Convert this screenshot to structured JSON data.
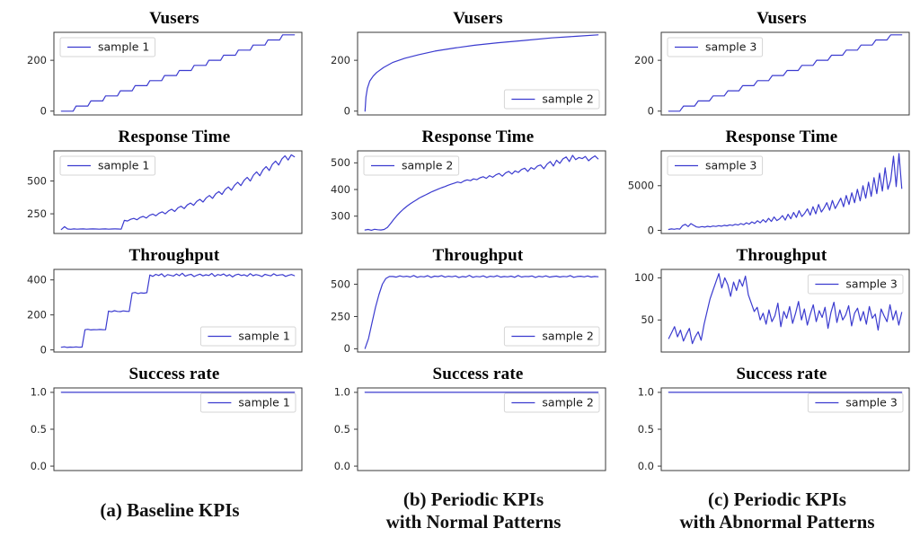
{
  "figure": {
    "line_color": "#3b3bcf",
    "axis_color": "#3a3a3a",
    "tick_label_color": "#262626",
    "legend_border_color": "#d5d5d5",
    "captions": [
      {
        "lines": [
          "(a) Baseline KPIs"
        ]
      },
      {
        "lines": [
          "(b) Periodic KPIs",
          "with Normal Patterns"
        ]
      },
      {
        "lines": [
          "(c) Periodic KPIs",
          "with Abnormal Patterns"
        ]
      }
    ]
  },
  "chart_data": [
    {
      "id": "vusers-a",
      "type": "line",
      "title": "Vusers",
      "row": 0,
      "col": 0,
      "legend": {
        "label": "sample 1",
        "position": "upper-left"
      },
      "ylim": [
        -15,
        310
      ],
      "yticks": [
        {
          "v": 0,
          "label": "0"
        },
        {
          "v": 200,
          "label": "200"
        }
      ],
      "values": [
        0,
        0,
        0,
        0,
        0,
        20,
        20,
        20,
        20,
        20,
        40,
        40,
        40,
        40,
        40,
        60,
        60,
        60,
        60,
        60,
        80,
        80,
        80,
        80,
        80,
        100,
        100,
        100,
        100,
        100,
        120,
        120,
        120,
        120,
        120,
        140,
        140,
        140,
        140,
        140,
        160,
        160,
        160,
        160,
        160,
        180,
        180,
        180,
        180,
        180,
        200,
        200,
        200,
        200,
        200,
        220,
        220,
        220,
        220,
        220,
        240,
        240,
        240,
        240,
        240,
        260,
        260,
        260,
        260,
        260,
        280,
        280,
        280,
        280,
        280,
        300,
        300,
        300,
        300,
        300
      ]
    },
    {
      "id": "vusers-b",
      "type": "line",
      "title": "Vusers",
      "row": 0,
      "col": 1,
      "legend": {
        "label": "sample 2",
        "position": "lower-right"
      },
      "ylim": [
        -15,
        310
      ],
      "yticks": [
        {
          "v": 0,
          "label": "0"
        },
        {
          "v": 200,
          "label": "200"
        }
      ],
      "points": [
        [
          0,
          0
        ],
        [
          0.004,
          55
        ],
        [
          0.01,
          90
        ],
        [
          0.02,
          118
        ],
        [
          0.035,
          138
        ],
        [
          0.05,
          152
        ],
        [
          0.08,
          172
        ],
        [
          0.12,
          192
        ],
        [
          0.17,
          208
        ],
        [
          0.23,
          222
        ],
        [
          0.3,
          236
        ],
        [
          0.38,
          248
        ],
        [
          0.47,
          259
        ],
        [
          0.57,
          269
        ],
        [
          0.68,
          278
        ],
        [
          0.8,
          288
        ],
        [
          0.9,
          294
        ],
        [
          1,
          300
        ]
      ]
    },
    {
      "id": "vusers-c",
      "type": "line",
      "title": "Vusers",
      "row": 0,
      "col": 2,
      "legend": {
        "label": "sample 3",
        "position": "upper-left"
      },
      "ylim": [
        -15,
        310
      ],
      "yticks": [
        {
          "v": 0,
          "label": "0"
        },
        {
          "v": 200,
          "label": "200"
        }
      ],
      "values": [
        0,
        0,
        0,
        0,
        20,
        20,
        20,
        20,
        40,
        40,
        40,
        40,
        60,
        60,
        60,
        60,
        80,
        80,
        80,
        80,
        100,
        100,
        100,
        100,
        120,
        120,
        120,
        120,
        140,
        140,
        140,
        140,
        160,
        160,
        160,
        160,
        180,
        180,
        180,
        180,
        200,
        200,
        200,
        200,
        220,
        220,
        220,
        220,
        240,
        240,
        240,
        240,
        260,
        260,
        260,
        260,
        280,
        280,
        280,
        280,
        300,
        300,
        300,
        300
      ]
    },
    {
      "id": "response-time-a",
      "type": "line",
      "title": "Response Time",
      "row": 1,
      "col": 0,
      "legend": {
        "label": "sample 1",
        "position": "upper-left"
      },
      "ylim": [
        100,
        730
      ],
      "yticks": [
        {
          "v": 250,
          "label": "250"
        },
        {
          "v": 500,
          "label": "500"
        }
      ],
      "values": [
        130,
        152,
        134,
        132,
        135,
        133,
        134,
        135,
        133,
        134,
        135,
        134,
        133,
        134,
        135,
        133,
        134,
        135,
        134,
        133,
        200,
        195,
        208,
        215,
        205,
        222,
        230,
        218,
        238,
        248,
        235,
        255,
        265,
        250,
        272,
        285,
        268,
        295,
        308,
        290,
        318,
        332,
        315,
        345,
        360,
        340,
        372,
        390,
        368,
        402,
        420,
        398,
        435,
        455,
        430,
        468,
        490,
        465,
        505,
        528,
        500,
        545,
        570,
        540,
        585,
        610,
        580,
        628,
        652,
        622,
        668,
        692,
        660,
        700,
        685
      ]
    },
    {
      "id": "response-time-b",
      "type": "line",
      "title": "Response Time",
      "row": 1,
      "col": 1,
      "legend": {
        "label": "sample 2",
        "position": "upper-left"
      },
      "ylim": [
        235,
        545
      ],
      "yticks": [
        {
          "v": 300,
          "label": "300"
        },
        {
          "v": 400,
          "label": "400"
        },
        {
          "v": 500,
          "label": "500"
        }
      ],
      "values": [
        248,
        250,
        247,
        251,
        249,
        248,
        250,
        258,
        272,
        288,
        302,
        315,
        326,
        336,
        345,
        353,
        360,
        368,
        374,
        380,
        386,
        392,
        397,
        402,
        407,
        411,
        416,
        420,
        424,
        428,
        425,
        432,
        436,
        433,
        440,
        437,
        444,
        448,
        442,
        452,
        446,
        455,
        460,
        450,
        462,
        468,
        458,
        470,
        464,
        475,
        480,
        468,
        482,
        476,
        488,
        492,
        478,
        495,
        505,
        488,
        510,
        498,
        515,
        522,
        505,
        528,
        512,
        520,
        516,
        524,
        508,
        518,
        526,
        515
      ]
    },
    {
      "id": "response-time-c",
      "type": "line",
      "title": "Response Time",
      "row": 1,
      "col": 2,
      "legend": {
        "label": "sample 3",
        "position": "upper-left"
      },
      "ylim": [
        -350,
        8900
      ],
      "yticks": [
        {
          "v": 0,
          "label": "0"
        },
        {
          "v": 5000,
          "label": "5000"
        }
      ],
      "values": [
        100,
        160,
        120,
        180,
        140,
        520,
        680,
        420,
        760,
        560,
        380,
        340,
        420,
        360,
        450,
        390,
        480,
        430,
        520,
        460,
        560,
        500,
        620,
        540,
        680,
        600,
        760,
        640,
        850,
        700,
        950,
        780,
        1080,
        850,
        1200,
        920,
        1350,
        1000,
        1500,
        1100,
        1300,
        1650,
        1150,
        1800,
        1300,
        2000,
        1450,
        2200,
        1550,
        1900,
        2400,
        1700,
        2650,
        1850,
        2900,
        2050,
        2500,
        3100,
        2250,
        3350,
        2450,
        3000,
        3600,
        2650,
        3900,
        2900,
        4200,
        3100,
        4600,
        3300,
        5000,
        3600,
        5400,
        3800,
        5900,
        4100,
        6400,
        4400,
        7000,
        4600,
        5600,
        8300,
        4900,
        8600,
        4700
      ]
    },
    {
      "id": "throughput-a",
      "type": "line",
      "title": "Throughput",
      "row": 2,
      "col": 0,
      "legend": {
        "label": "sample 1",
        "position": "lower-right"
      },
      "ylim": [
        -12,
        460
      ],
      "yticks": [
        {
          "v": 0,
          "label": "0"
        },
        {
          "v": 200,
          "label": "200"
        },
        {
          "v": 400,
          "label": "400"
        }
      ],
      "values": [
        15,
        18,
        14,
        16,
        15,
        17,
        15,
        16,
        115,
        118,
        114,
        116,
        115,
        117,
        116,
        115,
        222,
        218,
        224,
        220,
        219,
        223,
        221,
        220,
        325,
        328,
        322,
        326,
        324,
        327,
        428,
        420,
        432,
        425,
        435,
        418,
        430,
        426,
        422,
        434,
        424,
        438,
        421,
        428,
        432,
        419,
        427,
        433,
        423,
        429,
        425,
        437,
        420,
        431,
        426,
        434,
        422,
        430,
        417,
        428,
        433,
        425,
        429,
        421,
        436,
        424,
        430,
        426,
        419,
        432,
        427,
        423,
        435,
        425,
        428,
        430,
        420,
        426,
        431,
        424
      ]
    },
    {
      "id": "throughput-b",
      "type": "line",
      "title": "Throughput",
      "row": 2,
      "col": 1,
      "legend": {
        "label": "sample 2",
        "position": "lower-right"
      },
      "ylim": [
        -25,
        615
      ],
      "yticks": [
        {
          "v": 0,
          "label": "0"
        },
        {
          "v": 250,
          "label": "250"
        },
        {
          "v": 500,
          "label": "500"
        }
      ],
      "values": [
        2,
        80,
        200,
        320,
        420,
        500,
        545,
        560,
        560,
        555,
        565,
        558,
        562,
        556,
        568,
        554,
        561,
        557,
        566,
        553,
        563,
        559,
        567,
        555,
        562,
        558,
        564,
        552,
        560,
        556,
        569,
        554,
        561,
        557,
        565,
        553,
        562,
        558,
        566,
        555,
        560,
        557,
        563,
        554,
        568,
        556,
        561,
        559,
        564,
        553,
        562,
        557,
        565,
        555,
        559,
        563,
        556,
        561,
        558,
        567,
        554,
        560,
        562,
        557,
        564,
        556,
        560,
        558
      ]
    },
    {
      "id": "throughput-c",
      "type": "line",
      "title": "Throughput",
      "row": 2,
      "col": 2,
      "legend": {
        "label": "sample 3",
        "position": "upper-right"
      },
      "ylim": [
        12,
        110
      ],
      "yticks": [
        {
          "v": 50,
          "label": "50"
        },
        {
          "v": 100,
          "label": "100"
        }
      ],
      "values": [
        28,
        35,
        42,
        30,
        38,
        25,
        33,
        40,
        22,
        30,
        36,
        26,
        45,
        60,
        75,
        85,
        95,
        105,
        88,
        100,
        92,
        78,
        95,
        85,
        98,
        90,
        102,
        80,
        70,
        60,
        65,
        50,
        58,
        45,
        62,
        48,
        55,
        70,
        42,
        60,
        52,
        66,
        46,
        58,
        72,
        50,
        63,
        44,
        57,
        68,
        48,
        61,
        53,
        65,
        40,
        59,
        71,
        47,
        62,
        50,
        56,
        67,
        43,
        58,
        64,
        49,
        60,
        45,
        66,
        52,
        57,
        38,
        63,
        55,
        48,
        68,
        50,
        61,
        44,
        59
      ]
    },
    {
      "id": "success-rate-a",
      "type": "line",
      "title": "Success rate",
      "row": 3,
      "col": 0,
      "legend": {
        "label": "sample 1",
        "position": "upper-right"
      },
      "ylim": [
        -0.06,
        1.06
      ],
      "yticks": [
        {
          "v": 0.0,
          "label": "0.0"
        },
        {
          "v": 0.5,
          "label": "0.5"
        },
        {
          "v": 1.0,
          "label": "1.0"
        }
      ],
      "values": [
        1,
        1
      ]
    },
    {
      "id": "success-rate-b",
      "type": "line",
      "title": "Success rate",
      "row": 3,
      "col": 1,
      "legend": {
        "label": "sample 2",
        "position": "upper-right"
      },
      "ylim": [
        -0.06,
        1.06
      ],
      "yticks": [
        {
          "v": 0.0,
          "label": "0.0"
        },
        {
          "v": 0.5,
          "label": "0.5"
        },
        {
          "v": 1.0,
          "label": "1.0"
        }
      ],
      "values": [
        1,
        1
      ]
    },
    {
      "id": "success-rate-c",
      "type": "line",
      "title": "Success rate",
      "row": 3,
      "col": 2,
      "legend": {
        "label": "sample 3",
        "position": "upper-right"
      },
      "ylim": [
        -0.06,
        1.06
      ],
      "yticks": [
        {
          "v": 0.0,
          "label": "0.0"
        },
        {
          "v": 0.5,
          "label": "0.5"
        },
        {
          "v": 1.0,
          "label": "1.0"
        }
      ],
      "values": [
        1,
        1
      ]
    }
  ]
}
